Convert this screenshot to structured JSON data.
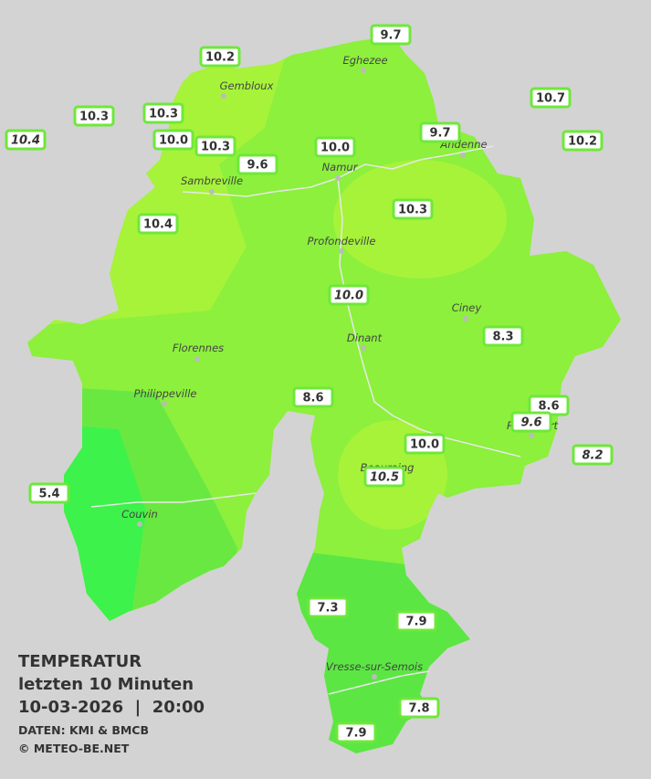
{
  "stations": [
    {
      "label": "9.7"
    },
    {
      "label": "10.2"
    },
    {
      "label": "10.7"
    },
    {
      "label": "10.3"
    },
    {
      "label": "10.3"
    },
    {
      "label": "10.4",
      "italic": true
    },
    {
      "label": "10.0"
    },
    {
      "label": "10.3"
    },
    {
      "label": "10.2"
    },
    {
      "label": "9.7"
    },
    {
      "label": "10.0"
    },
    {
      "label": "9.6"
    },
    {
      "label": "10.3"
    },
    {
      "label": "10.4"
    },
    {
      "label": "10.0",
      "italic": true
    },
    {
      "label": "8.3"
    },
    {
      "label": "8.6"
    },
    {
      "label": "8.6"
    },
    {
      "label": "9.6",
      "italic": true
    },
    {
      "label": "10.0"
    },
    {
      "label": "8.2",
      "italic": true
    },
    {
      "label": "10.5",
      "italic": true
    },
    {
      "label": "5.4"
    },
    {
      "label": "7.3"
    },
    {
      "label": "7.9"
    },
    {
      "label": "7.8"
    },
    {
      "label": "7.9"
    }
  ],
  "places": [
    "Eghezee",
    "Gembloux",
    "Andenne",
    "Sambreville",
    "Namur",
    "Profondeville",
    "Ciney",
    "Dinant",
    "Florennes",
    "Philippeville",
    "Beauraing",
    "Rochefort",
    "Couvin",
    "Vresse-sur-Semois"
  ],
  "legend": {
    "title": "TEMPERATUR",
    "line1": "letzten 10 Minuten",
    "line2": "10-03-2026  |  20:00",
    "source": "DATEN: KMI & BMCB",
    "copyright": "© METEO-BE.NET"
  }
}
